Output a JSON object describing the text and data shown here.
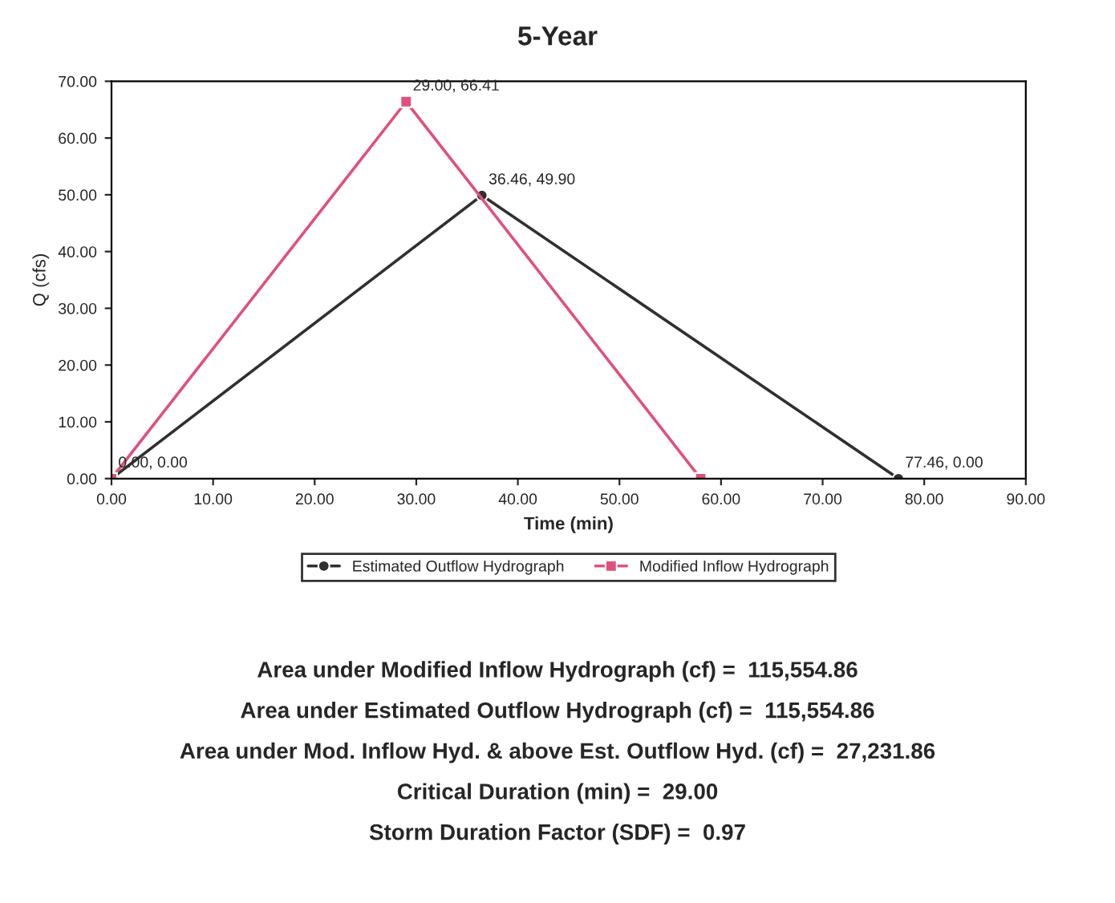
{
  "chart_data": {
    "type": "line",
    "title": "5-Year",
    "xlabel": "Time (min)",
    "ylabel": "Q (cfs)",
    "xlim": [
      0,
      90
    ],
    "xticks": [
      {
        "value": 0,
        "label": "0.00"
      },
      {
        "value": 10,
        "label": "10.00"
      },
      {
        "value": 20,
        "label": "20.00"
      },
      {
        "value": 30,
        "label": "30.00"
      },
      {
        "value": 40,
        "label": "40.00"
      },
      {
        "value": 50,
        "label": "50.00"
      },
      {
        "value": 60,
        "label": "60.00"
      },
      {
        "value": 70,
        "label": "70.00"
      },
      {
        "value": 80,
        "label": "80.00"
      },
      {
        "value": 90,
        "label": "90.00"
      }
    ],
    "ylim": [
      0,
      70
    ],
    "yticks": [
      {
        "value": 0,
        "label": "0.00"
      },
      {
        "value": 10,
        "label": "10.00"
      },
      {
        "value": 20,
        "label": "20.00"
      },
      {
        "value": 30,
        "label": "30.00"
      },
      {
        "value": 40,
        "label": "40.00"
      },
      {
        "value": 50,
        "label": "50.00"
      },
      {
        "value": 60,
        "label": "60.00"
      },
      {
        "value": 70,
        "label": "70.00"
      }
    ],
    "series": [
      {
        "name": "Estimated Outflow Hydrograph",
        "color": "#303030",
        "marker": "circle",
        "x": [
          0,
          36.46,
          77.46
        ],
        "values": [
          0,
          49.9,
          0
        ]
      },
      {
        "name": "Modified Inflow Hydrograph",
        "color": "#e0507a",
        "marker": "square",
        "x": [
          0,
          29.0,
          58.0
        ],
        "values": [
          0,
          66.41,
          0
        ]
      }
    ],
    "annotations": [
      {
        "text": "36.46, 49.90",
        "x": 36.46,
        "y": 49.9
      },
      {
        "text": "29.00, 66.41",
        "x": 29.0,
        "y": 66.41
      },
      {
        "text": "0.00, 0.00",
        "x": 0,
        "y": 0
      },
      {
        "text": "77.46, 0.00",
        "x": 77.46,
        "y": 0
      },
      "Area under Modified Inflow Hydrograph (cf) =  115,554.86",
      "Area under Estimated Outflow Hydrograph (cf) =  115,554.86",
      "Area under Mod. Inflow Hyd. & above Est. Outflow Hyd. (cf) =  27,231.86",
      "Critical Duration (min) =  29.00",
      "Storm Duration Factor (SDF) =  0.97"
    ],
    "legend": "bottom",
    "grid": false
  }
}
